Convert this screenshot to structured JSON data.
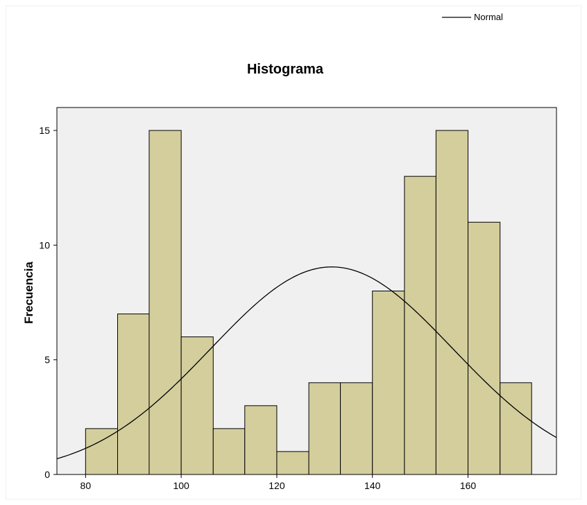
{
  "chart_data": {
    "type": "bar",
    "title": "Histograma",
    "xlabel": "",
    "ylabel": "Frecuencia",
    "bin_edges": [
      80,
      86.7,
      93.3,
      100,
      106.7,
      113.3,
      120,
      126.7,
      133.3,
      140,
      146.7,
      153.3,
      160,
      166.7,
      173.3
    ],
    "values": [
      2,
      7,
      15,
      6,
      2,
      3,
      1,
      4,
      4,
      8,
      13,
      15,
      11,
      4
    ],
    "xlim": [
      74,
      178.5
    ],
    "ylim": [
      0,
      16
    ],
    "xticks": [
      80,
      100,
      120,
      140,
      160
    ],
    "yticks": [
      0,
      5,
      10,
      15
    ],
    "normal_curve": {
      "name": "Normal",
      "mean": 131.5,
      "sd": 25.3,
      "peak": 9.05
    },
    "legend": {
      "entries": [
        "Normal"
      ],
      "placement": "top-right"
    },
    "colors": {
      "bar_fill": "#D3CE9C",
      "bar_stroke": "#000000",
      "plot_bg": "#F0F0F0",
      "curve": "#000000"
    },
    "grid": false
  }
}
